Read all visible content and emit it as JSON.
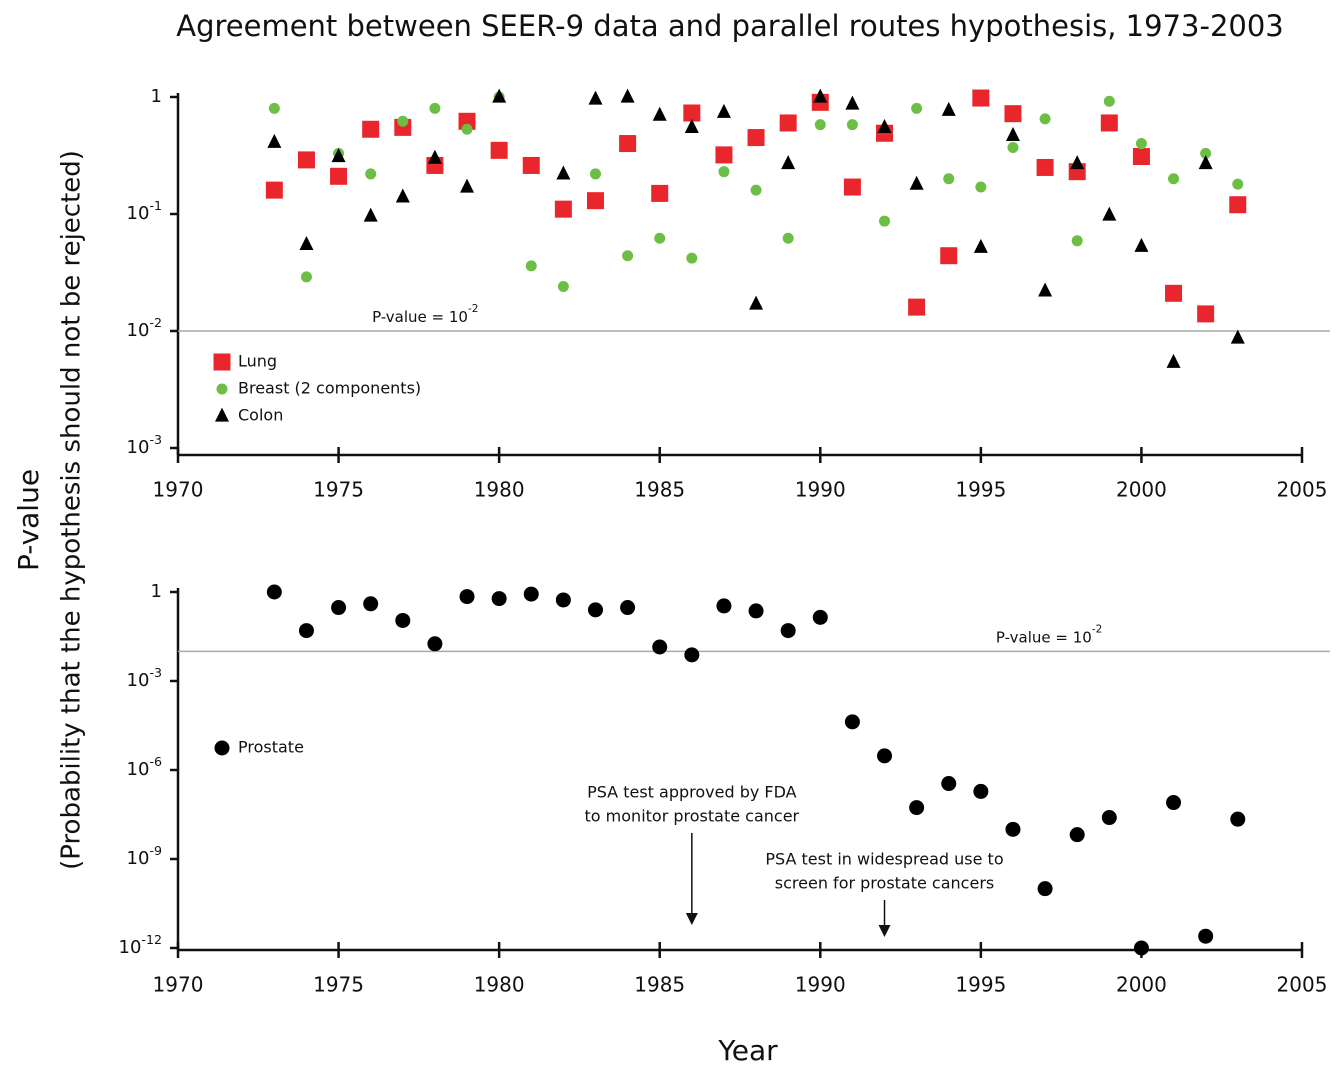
{
  "chart_data": [
    {
      "type": "scatter",
      "title": "Agreement between SEER-9 data and parallel routes hypothesis, 1973-2003",
      "ylabel": [
        "P-value",
        "(Probability that the hypothesis should not be rejected)"
      ],
      "log_y": true,
      "x": [
        1973,
        1974,
        1975,
        1976,
        1977,
        1978,
        1979,
        1980,
        1981,
        1982,
        1983,
        1984,
        1985,
        1986,
        1987,
        1988,
        1989,
        1990,
        1991,
        1992,
        1993,
        1994,
        1995,
        1996,
        1997,
        1998,
        1999,
        2000,
        2001,
        2002,
        2003
      ],
      "series": [
        {
          "name": "Lung",
          "color": "#e8262b",
          "marker": "square",
          "values": [
            0.16,
            0.29,
            0.21,
            0.53,
            0.55,
            0.26,
            0.62,
            0.35,
            0.26,
            0.11,
            0.13,
            0.4,
            0.15,
            0.73,
            0.32,
            0.45,
            0.6,
            0.9,
            0.17,
            0.49,
            0.016,
            0.044,
            0.98,
            0.72,
            0.25,
            0.23,
            0.6,
            0.31,
            0.021,
            0.014,
            0.12
          ]
        },
        {
          "name": "Breast (2 components)",
          "color": "#6cbf44",
          "marker": "circle",
          "values": [
            0.8,
            0.029,
            0.33,
            0.22,
            0.62,
            0.8,
            0.53,
            1,
            0.036,
            0.024,
            0.22,
            0.044,
            0.062,
            0.042,
            0.23,
            0.16,
            0.062,
            0.58,
            0.58,
            0.087,
            0.8,
            0.2,
            0.17,
            0.37,
            0.65,
            0.059,
            0.92,
            0.4,
            0.2,
            0.33,
            0.18
          ]
        },
        {
          "name": "Colon",
          "color": "#000000",
          "marker": "triangle",
          "values": [
            0.41,
            0.055,
            0.31,
            0.096,
            0.14,
            0.3,
            0.17,
            1,
            null,
            0.22,
            0.96,
            1,
            0.7,
            0.55,
            0.74,
            0.017,
            0.27,
            1,
            0.87,
            0.55,
            0.18,
            0.77,
            0.052,
            0.47,
            0.022,
            0.27,
            0.098,
            0.053,
            0.0054,
            0.27,
            0.0087
          ]
        }
      ],
      "xlim": [
        1970,
        2005
      ],
      "xticks": [
        1970,
        1975,
        1980,
        1985,
        1990,
        1995,
        2000,
        2005
      ],
      "ylim": [
        0.001,
        1
      ],
      "yticks": [
        {
          "value": 0.001,
          "label": "10-3"
        },
        {
          "value": 0.01,
          "label": "10-2"
        },
        {
          "value": 0.1,
          "label": "10-1"
        },
        1
      ],
      "hline": 0.01,
      "hline_label": "P-value = 10-2",
      "legend": "lower left"
    },
    {
      "type": "scatter",
      "xlabel": "Year",
      "log_y": true,
      "x": [
        1973,
        1974,
        1975,
        1976,
        1977,
        1978,
        1979,
        1980,
        1981,
        1982,
        1983,
        1984,
        1985,
        1986,
        1987,
        1988,
        1989,
        1990,
        1991,
        1992,
        1993,
        1994,
        1995,
        1996,
        1997,
        1998,
        1999,
        2000,
        2001,
        2002,
        2003
      ],
      "series": [
        {
          "name": "Prostate",
          "color": "#000000",
          "marker": "circle",
          "values": [
            1,
            0.05,
            0.3,
            0.4,
            0.11,
            0.018,
            0.7,
            0.6,
            0.85,
            0.54,
            0.25,
            0.3,
            0.014,
            0.0076,
            0.34,
            0.23,
            0.05,
            0.14,
            4.2e-05,
            3e-06,
            5.4e-08,
            3.5e-07,
            1.9e-07,
            1e-08,
            1e-10,
            6.6e-09,
            2.5e-08,
            1e-12,
            8e-08,
            2.5e-12,
            2.2e-08
          ]
        }
      ],
      "xlim": [
        1970,
        2005
      ],
      "xticks": [
        1970,
        1975,
        1980,
        1985,
        1990,
        1995,
        2000,
        2005
      ],
      "ylim": [
        1e-12,
        1
      ],
      "yticks": [
        {
          "value": 1e-12,
          "label": "10-12"
        },
        {
          "value": 1e-09,
          "label": "10-9"
        },
        {
          "value": 1e-06,
          "label": "10-6"
        },
        {
          "value": 0.001,
          "label": "10-3"
        },
        1
      ],
      "hline": 0.01,
      "hline_label": "P-value = 10-2",
      "legend": "center left",
      "annotations": [
        {
          "text": [
            "PSA test approved by FDA",
            "to monitor prostate cancer"
          ],
          "x": 1986
        },
        {
          "text": [
            "PSA test in widespread use to",
            "screen for prostate cancers"
          ],
          "x": 1992
        }
      ]
    }
  ]
}
